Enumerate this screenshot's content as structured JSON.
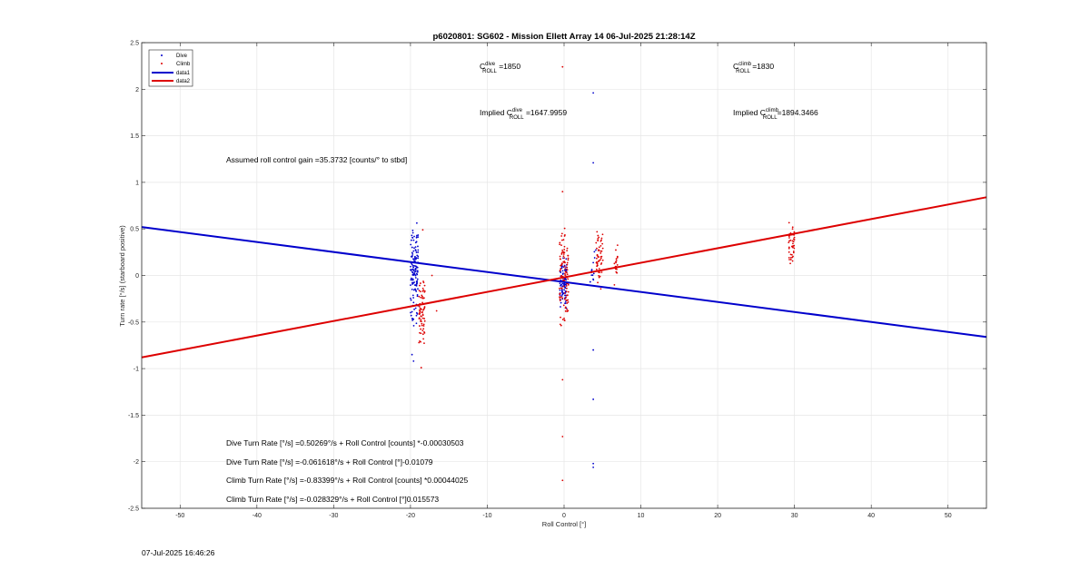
{
  "footer_timestamp": "07-Jul-2025 16:46:26",
  "colors": {
    "dive": "#0000cc",
    "climb": "#dd0000",
    "grid": "#e6e6e6",
    "axis": "#262626"
  },
  "chart_data": {
    "type": "scatter",
    "title": "p6020801: SG602 - Mission Ellett Array 14 06-Jul-2025 21:28:14Z",
    "xlabel": "Roll Control [°]",
    "ylabel": "Turn rate [°/s] (starboard positive)",
    "xlim": [
      -55,
      55
    ],
    "ylim": [
      -2.5,
      2.5
    ],
    "xticks": [
      -50,
      -40,
      -30,
      -20,
      -10,
      0,
      10,
      20,
      30,
      40,
      50
    ],
    "yticks": [
      -2.5,
      -2,
      -1.5,
      -1,
      -0.5,
      0,
      0.5,
      1,
      1.5,
      2,
      2.5
    ],
    "grid": true,
    "legend_position": "top-left",
    "legend": [
      "Dive",
      "Climb",
      "data1",
      "data2"
    ],
    "series": [
      {
        "name": "Dive",
        "kind": "points",
        "color": "#0000cc",
        "clusters": [
          {
            "x": -19.5,
            "xspread": 0.5,
            "ymin": -0.62,
            "ymax": 0.7,
            "n": 140
          },
          {
            "x": -0.1,
            "xspread": 0.45,
            "ymin": -0.4,
            "ymax": 0.2,
            "n": 90
          },
          {
            "x": 3.8,
            "xspread": 0.4,
            "ymin": -0.2,
            "ymax": 0.35,
            "n": 14
          }
        ],
        "outliers": [
          [
            -19.8,
            -0.85
          ],
          [
            -19.6,
            -0.92
          ],
          [
            3.8,
            1.96
          ],
          [
            3.8,
            1.21
          ],
          [
            3.8,
            -0.8
          ],
          [
            3.8,
            -1.33
          ],
          [
            3.8,
            -2.02
          ],
          [
            3.8,
            -2.06
          ]
        ]
      },
      {
        "name": "Climb",
        "kind": "points",
        "color": "#dd0000",
        "clusters": [
          {
            "x": -18.5,
            "xspread": 0.4,
            "ymin": -0.75,
            "ymax": 0.0,
            "n": 70
          },
          {
            "x": 0.0,
            "xspread": 0.6,
            "ymin": -0.6,
            "ymax": 0.62,
            "n": 110
          },
          {
            "x": 4.6,
            "xspread": 0.45,
            "ymin": -0.2,
            "ymax": 0.55,
            "n": 55
          },
          {
            "x": 6.8,
            "xspread": 0.25,
            "ymin": -0.15,
            "ymax": 0.35,
            "n": 20
          },
          {
            "x": 29.6,
            "xspread": 0.4,
            "ymin": 0.1,
            "ymax": 0.62,
            "n": 45
          }
        ],
        "outliers": [
          [
            -18.6,
            -0.99
          ],
          [
            -18.4,
            0.49
          ],
          [
            -17.2,
            0.0
          ],
          [
            -16.6,
            -0.38
          ],
          [
            -0.2,
            2.24
          ],
          [
            -0.2,
            0.9
          ],
          [
            -0.2,
            -1.12
          ],
          [
            -0.2,
            -1.73
          ],
          [
            -0.2,
            -2.2
          ]
        ]
      },
      {
        "name": "data1",
        "kind": "line",
        "color": "#0000cc",
        "x": [
          -55,
          55
        ],
        "y": [
          0.52,
          -0.66
        ]
      },
      {
        "name": "data2",
        "kind": "line",
        "color": "#dd0000",
        "x": [
          -55,
          55
        ],
        "y": [
          -0.88,
          0.84
        ]
      }
    ],
    "annotations": {
      "c_dive_prefix": "C",
      "c_dive_sup": "dive",
      "c_dive_sub": "ROLL",
      "c_dive_value": " =1850",
      "c_climb_prefix": "C",
      "c_climb_sup": "climb",
      "c_climb_sub": "ROLL",
      "c_climb_value": " =1830",
      "implied_dive_prefix": "Implied C",
      "implied_dive_sup": "dive",
      "implied_dive_sub": "ROLL",
      "implied_dive_value": " =1647.9959",
      "implied_climb_prefix": "Implied C",
      "implied_climb_sup": "climb",
      "implied_climb_sub": "ROLL",
      "implied_climb_value": "=1894.3466",
      "roll_gain": "Assumed roll control gain =35.3732 [counts/° to stbd]",
      "eq_dive_counts": "Dive Turn Rate [°/s] =0.50269°/s + Roll Control [counts] *-0.00030503",
      "eq_dive_deg": "Dive Turn Rate [°/s] =-0.061618°/s + Roll Control [°]-0.01079",
      "eq_climb_counts": "Climb Turn Rate [°/s] =-0.83399°/s + Roll Control [counts] *0.00044025",
      "eq_climb_deg": "Climb Turn Rate [°/s] =-0.028329°/s + Roll Control [°]0.015573"
    }
  }
}
